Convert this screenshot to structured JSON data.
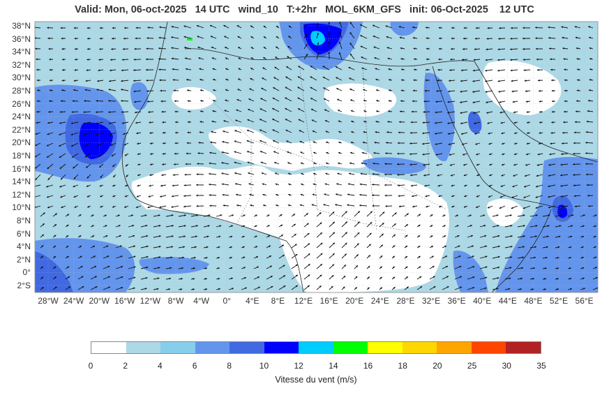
{
  "title": "Valid: Mon, 06-oct-2025   14 UTC   wind_10   T:+2hr   MOL_6KM_GFS   init: 06-Oct-2025    12 UTC",
  "lat_labels": [
    "38°N",
    "36°N",
    "34°N",
    "32°N",
    "30°N",
    "28°N",
    "26°N",
    "24°N",
    "22°N",
    "20°N",
    "18°N",
    "16°N",
    "14°N",
    "12°N",
    "10°N",
    "8°N",
    "6°N",
    "4°N",
    "2°N",
    "0°",
    "2°S"
  ],
  "lon_labels": [
    "28°W",
    "24°W",
    "20°W",
    "16°W",
    "12°W",
    "8°W",
    "4°W",
    "0°",
    "4°E",
    "8°E",
    "12°E",
    "16°E",
    "20°E",
    "24°E",
    "28°E",
    "32°E",
    "36°E",
    "40°E",
    "44°E",
    "48°E",
    "52°E",
    "56°E"
  ],
  "colorbar": {
    "title": "Vitesse du vent (m/s)",
    "ticks": [
      "0",
      "2",
      "4",
      "6",
      "8",
      "10",
      "12",
      "14",
      "16",
      "18",
      "20",
      "25",
      "30",
      "35"
    ],
    "colors": [
      "#ffffff",
      "#add8e6",
      "#87ceeb",
      "#6495ed",
      "#4169e1",
      "#0000ff",
      "#00ccff",
      "#00ff00",
      "#ffff00",
      "#ffd700",
      "#ffa500",
      "#ff4500",
      "#b22222"
    ]
  },
  "palette": {
    "frame": "#999999",
    "grid": "#bbbbbb",
    "coast": "#222222",
    "arrow": "#111111"
  }
}
